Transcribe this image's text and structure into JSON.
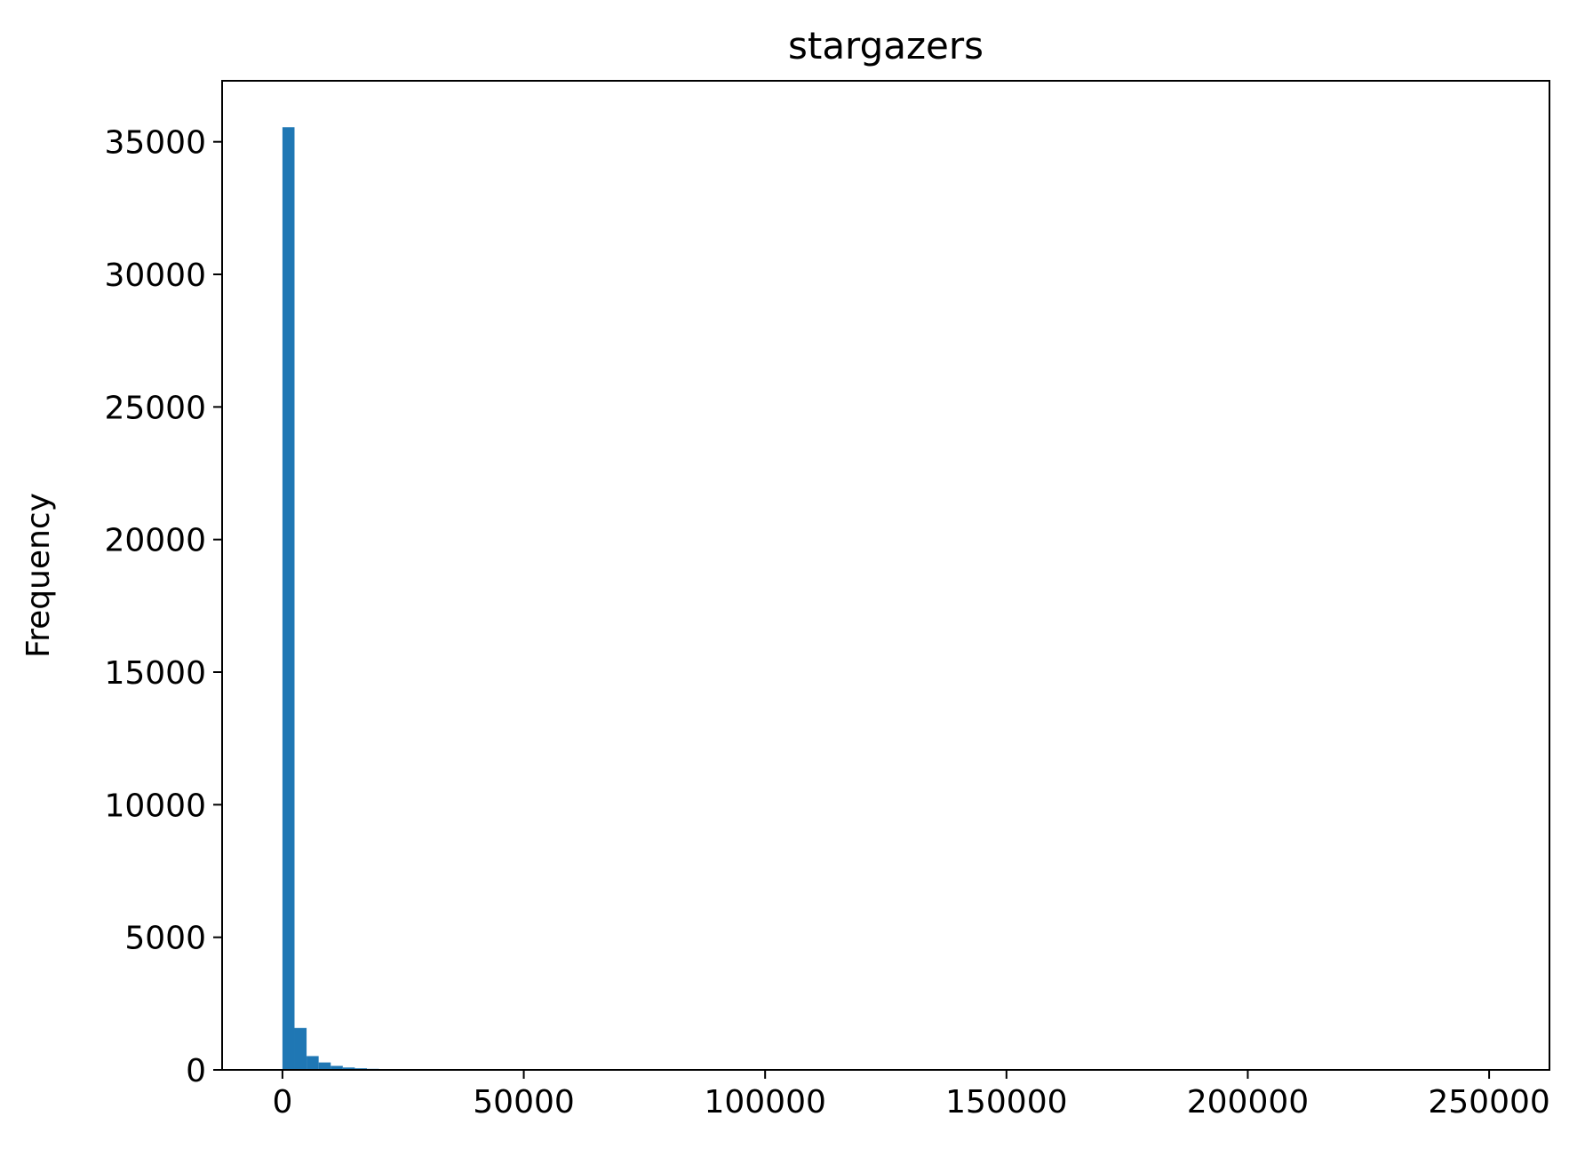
{
  "chart_data": {
    "type": "bar",
    "title": "stargazers",
    "xlabel": "",
    "ylabel": "Frequency",
    "bar_color": "#1f77b4",
    "xlim": [
      -12500,
      262500
    ],
    "ylim": [
      0,
      37300
    ],
    "xticks": [
      0,
      50000,
      100000,
      150000,
      200000,
      250000
    ],
    "xtick_labels": [
      "0",
      "50000",
      "100000",
      "150000",
      "200000",
      "250000"
    ],
    "yticks": [
      0,
      5000,
      10000,
      15000,
      20000,
      25000,
      30000,
      35000
    ],
    "ytick_labels": [
      "0",
      "5000",
      "10000",
      "15000",
      "20000",
      "25000",
      "30000",
      "35000"
    ],
    "grid": false,
    "bins": [
      {
        "x0": 0,
        "x1": 2500,
        "count": 35550
      },
      {
        "x0": 2500,
        "x1": 5000,
        "count": 1580
      },
      {
        "x0": 5000,
        "x1": 7500,
        "count": 520
      },
      {
        "x0": 7500,
        "x1": 10000,
        "count": 280
      },
      {
        "x0": 10000,
        "x1": 12500,
        "count": 150
      },
      {
        "x0": 12500,
        "x1": 15000,
        "count": 90
      },
      {
        "x0": 15000,
        "x1": 17500,
        "count": 60
      },
      {
        "x0": 17500,
        "x1": 20000,
        "count": 40
      },
      {
        "x0": 20000,
        "x1": 22500,
        "count": 20
      },
      {
        "x0": 22500,
        "x1": 25000,
        "count": 12
      },
      {
        "x0": 25000,
        "x1": 27500,
        "count": 8
      },
      {
        "x0": 27500,
        "x1": 30000,
        "count": 5
      }
    ]
  }
}
